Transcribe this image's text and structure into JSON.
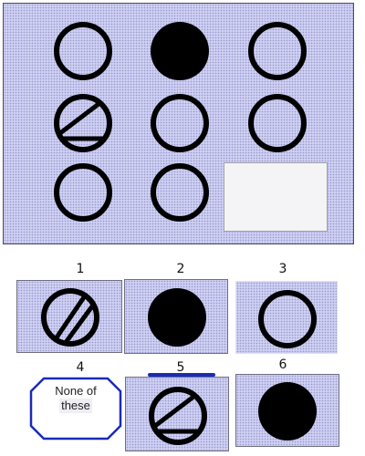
{
  "puzzle": {
    "matrix": {
      "cells": [
        {
          "row": 1,
          "col": 1,
          "shape": "ring-icon"
        },
        {
          "row": 1,
          "col": 2,
          "shape": "filled-circle-icon"
        },
        {
          "row": 1,
          "col": 3,
          "shape": "ring-icon"
        },
        {
          "row": 2,
          "col": 1,
          "shape": "slashed-ring-icon"
        },
        {
          "row": 2,
          "col": 2,
          "shape": "ring-icon"
        },
        {
          "row": 2,
          "col": 3,
          "shape": "ring-icon"
        },
        {
          "row": 3,
          "col": 1,
          "shape": "ring-icon"
        },
        {
          "row": 3,
          "col": 2,
          "shape": "ring-icon"
        },
        {
          "row": 3,
          "col": 3,
          "shape": "blank"
        }
      ]
    },
    "options": [
      {
        "label": "1",
        "shape": "diagonal-slash-ring-icon"
      },
      {
        "label": "2",
        "shape": "filled-circle-icon"
      },
      {
        "label": "3",
        "shape": "ring-icon"
      },
      {
        "label": "4",
        "text_line1": "None of",
        "text_line2": "these"
      },
      {
        "label": "5",
        "shape": "slashed-ring-icon"
      },
      {
        "label": "6",
        "shape": "filled-circle-icon"
      }
    ],
    "colors": {
      "panel": "#cfd0f3",
      "ink": "#000000",
      "none_border": "#1a2bb5"
    }
  }
}
